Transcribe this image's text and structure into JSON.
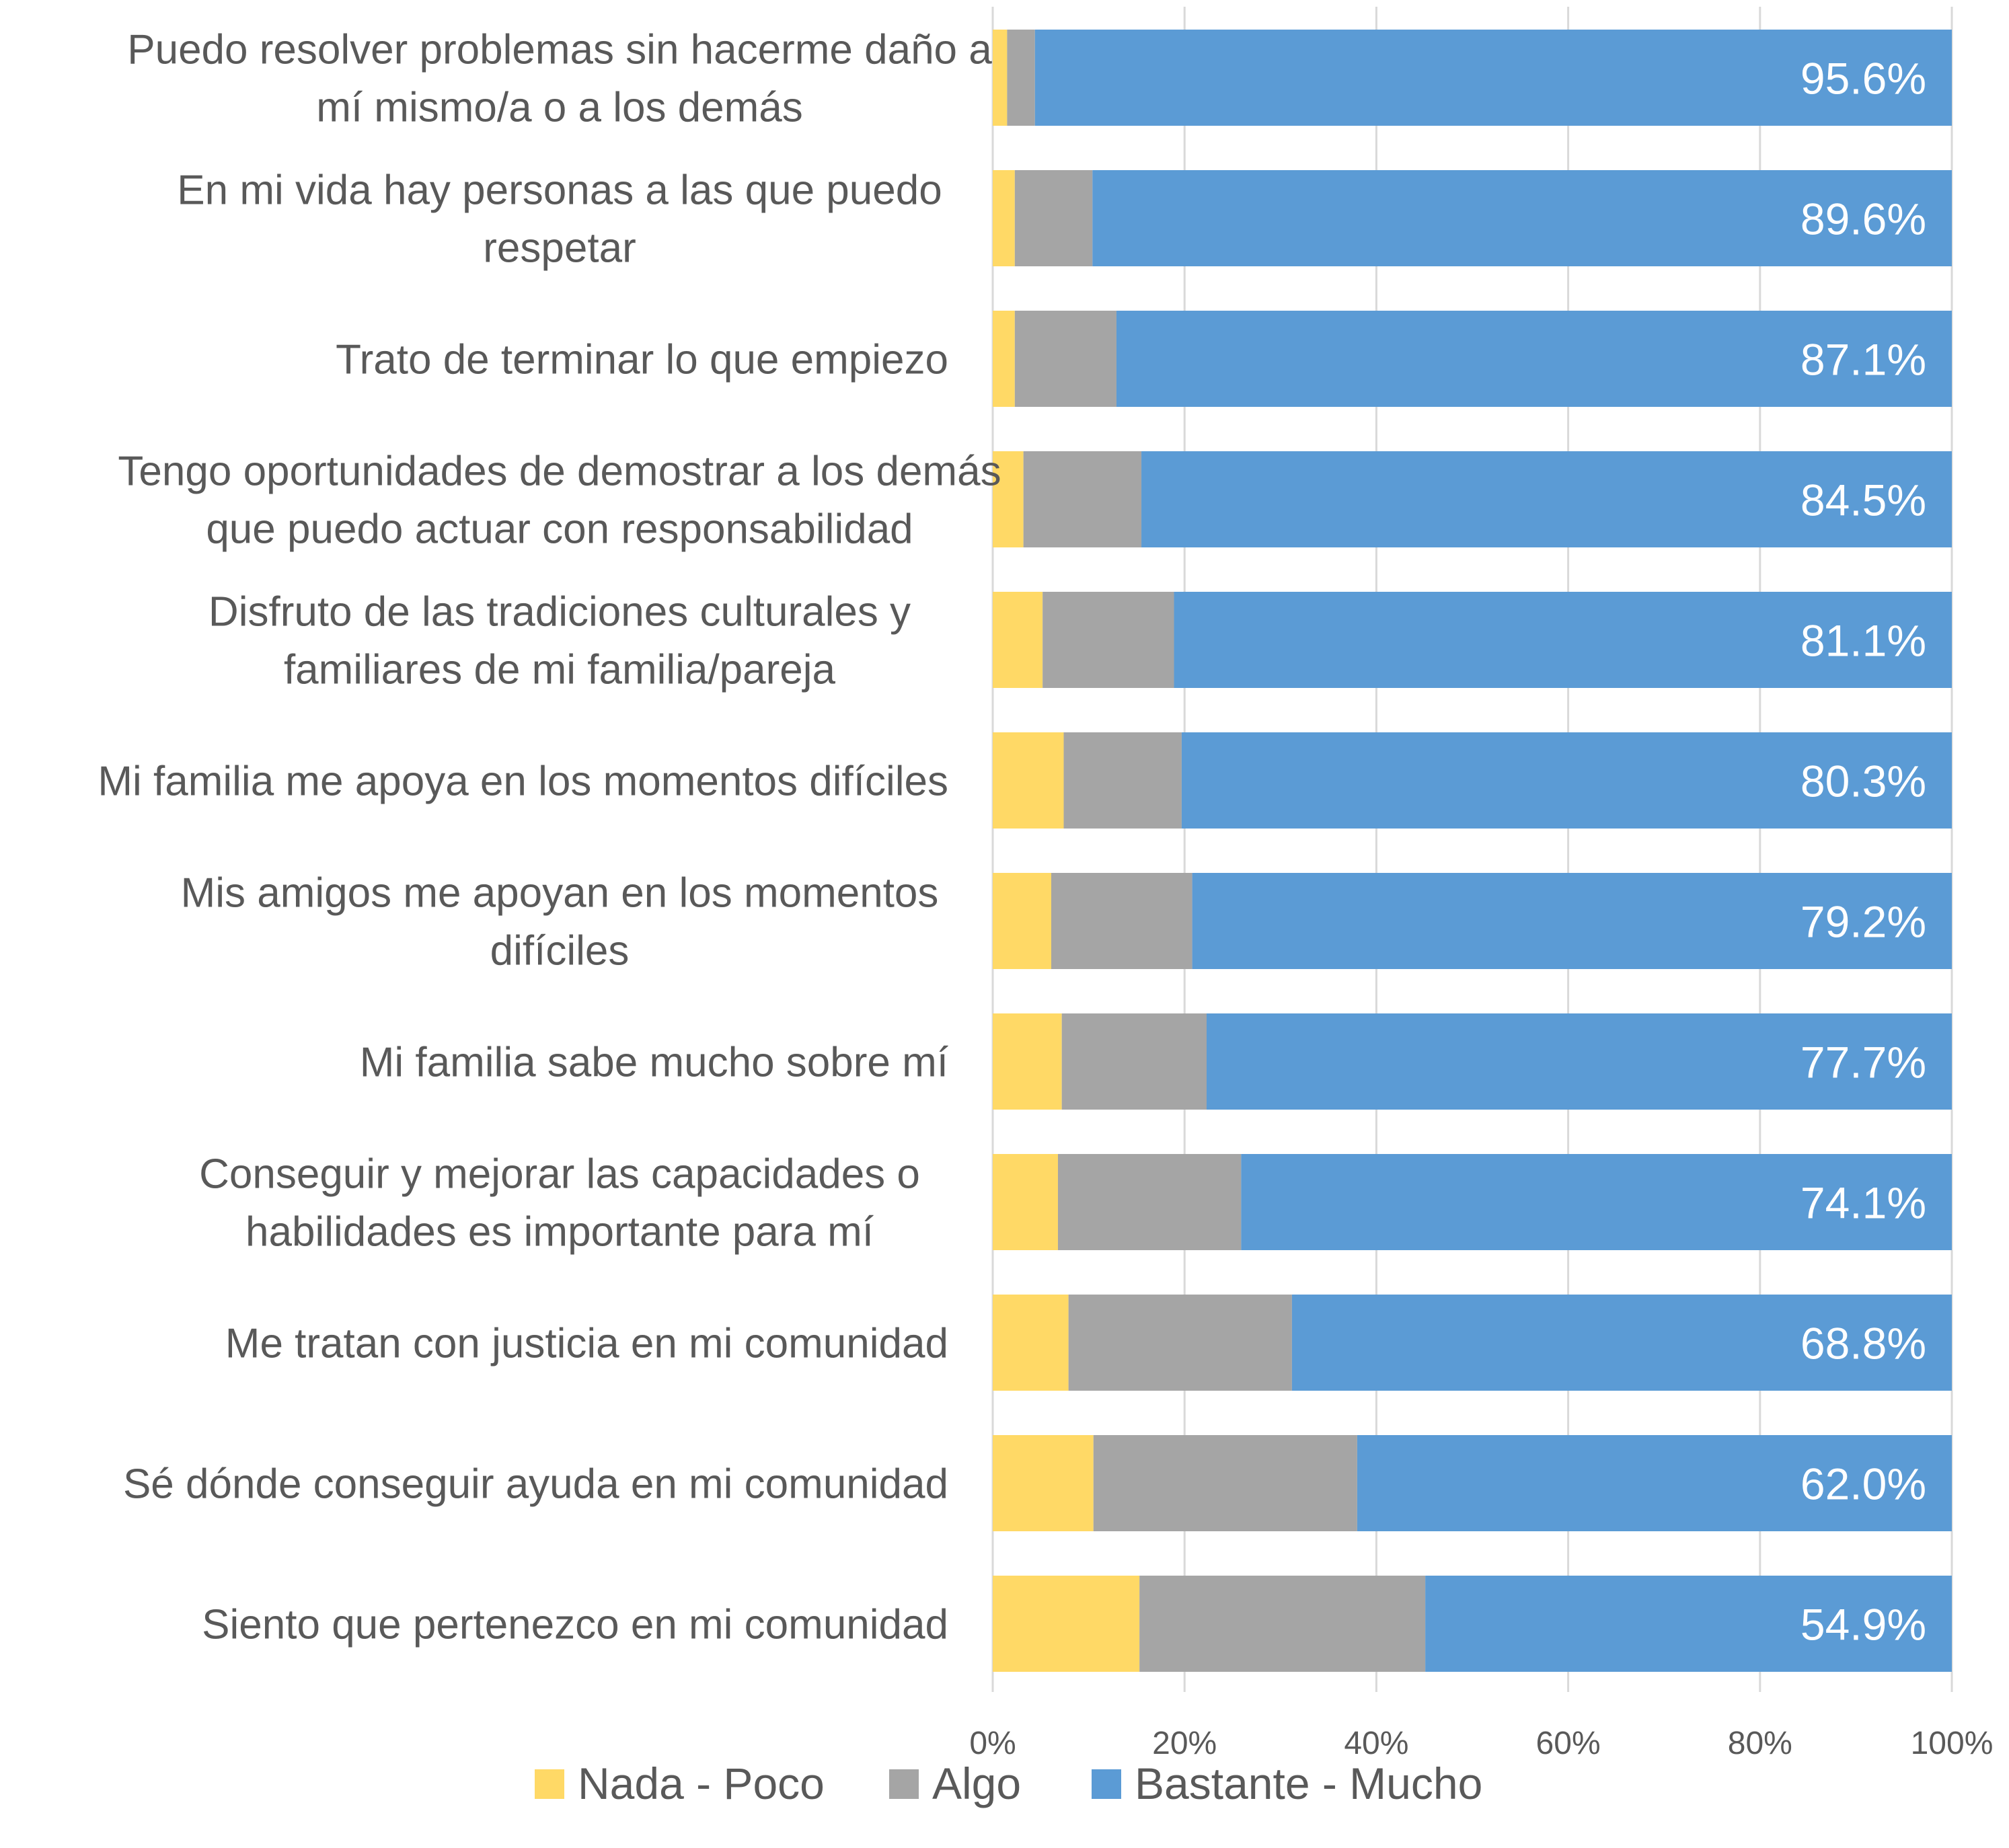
{
  "chart_data": {
    "type": "bar",
    "orientation": "horizontal",
    "stacked": true,
    "normalized": true,
    "categories": [
      [
        "Puedo resolver problemas sin hacerme daño a",
        "mí mismo/a o a los demás"
      ],
      [
        "En mi vida hay personas a las que puedo",
        "respetar"
      ],
      [
        "Trato de terminar lo que empiezo"
      ],
      [
        "Tengo oportunidades de demostrar a los demás",
        "que puedo actuar con responsabilidad"
      ],
      [
        "Disfruto de las tradiciones culturales y",
        "familiares de mi familia/pareja"
      ],
      [
        "Mi familia me apoya en los momentos difíciles"
      ],
      [
        "Mis amigos me apoyan en los momentos",
        "difíciles"
      ],
      [
        "Mi familia sabe mucho sobre mí"
      ],
      [
        "Conseguir y mejorar las capacidades o",
        "habilidades es importante para mí"
      ],
      [
        "Me tratan con justicia en mi comunidad"
      ],
      [
        "Sé dónde conseguir ayuda en mi comunidad"
      ],
      [
        "Siento que pertenezco en mi comunidad"
      ]
    ],
    "series": [
      {
        "name": "Nada - Poco",
        "color": "#FFD966",
        "values": [
          1.5,
          2.3,
          2.3,
          3.2,
          5.2,
          7.4,
          6.1,
          7.2,
          6.8,
          7.9,
          10.5,
          15.3
        ]
      },
      {
        "name": "Algo",
        "color": "#A5A5A5",
        "values": [
          2.9,
          8.1,
          10.6,
          12.3,
          13.7,
          12.3,
          14.7,
          15.1,
          19.1,
          23.3,
          27.5,
          29.8
        ]
      },
      {
        "name": "Bastante - Mucho",
        "color": "#5B9BD5",
        "values": [
          95.6,
          89.6,
          87.1,
          84.5,
          81.1,
          80.3,
          79.2,
          77.7,
          74.1,
          68.8,
          62.0,
          54.9
        ],
        "labels": [
          "95.6%",
          "89.6%",
          "87.1%",
          "84.5%",
          "81.1%",
          "80.3%",
          "79.2%",
          "77.7%",
          "74.1%",
          "68.8%",
          "62.0%",
          "54.9%"
        ]
      }
    ],
    "x_ticks": [
      "0%",
      "20%",
      "40%",
      "60%",
      "80%",
      "100%"
    ],
    "xlim": [
      0,
      100
    ],
    "grid": true,
    "legend_position": "bottom",
    "title": "",
    "xlabel": "",
    "ylabel": ""
  }
}
